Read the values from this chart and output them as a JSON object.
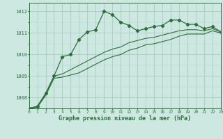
{
  "title": "Graphe pression niveau de la mer (hPa)",
  "background_color": "#cce8e0",
  "grid_color_major": "#a0c8bc",
  "grid_color_minor": "#b8d8d0",
  "line_color": "#2d6e3e",
  "x_min": 0,
  "x_max": 23,
  "y_min": 1007.5,
  "y_max": 1012.4,
  "y_ticks": [
    1008,
    1009,
    1010,
    1011,
    1012
  ],
  "x_ticks": [
    0,
    1,
    2,
    3,
    4,
    5,
    6,
    7,
    8,
    9,
    10,
    11,
    12,
    13,
    14,
    15,
    16,
    17,
    18,
    19,
    20,
    21,
    22,
    23
  ],
  "series1": [
    1007.5,
    1007.6,
    1008.2,
    1009.0,
    1009.9,
    1010.0,
    1010.7,
    1011.05,
    1011.15,
    1012.0,
    1011.85,
    1011.5,
    1011.35,
    1011.1,
    1011.2,
    1011.3,
    1011.35,
    1011.6,
    1011.6,
    1011.4,
    1011.4,
    1011.2,
    1011.3,
    1011.05
  ],
  "series2": [
    1007.5,
    1007.6,
    1008.15,
    1009.0,
    1009.1,
    1009.3,
    1009.5,
    1009.7,
    1009.9,
    1010.1,
    1010.25,
    1010.35,
    1010.55,
    1010.65,
    1010.75,
    1010.8,
    1010.9,
    1011.0,
    1011.1,
    1011.15,
    1011.15,
    1011.1,
    1011.2,
    1011.05
  ],
  "series3": [
    1007.5,
    1007.55,
    1008.1,
    1008.9,
    1008.95,
    1009.05,
    1009.15,
    1009.35,
    1009.55,
    1009.75,
    1009.9,
    1010.0,
    1010.2,
    1010.3,
    1010.45,
    1010.5,
    1010.6,
    1010.7,
    1010.85,
    1010.95,
    1010.95,
    1010.95,
    1011.1,
    1011.0
  ]
}
